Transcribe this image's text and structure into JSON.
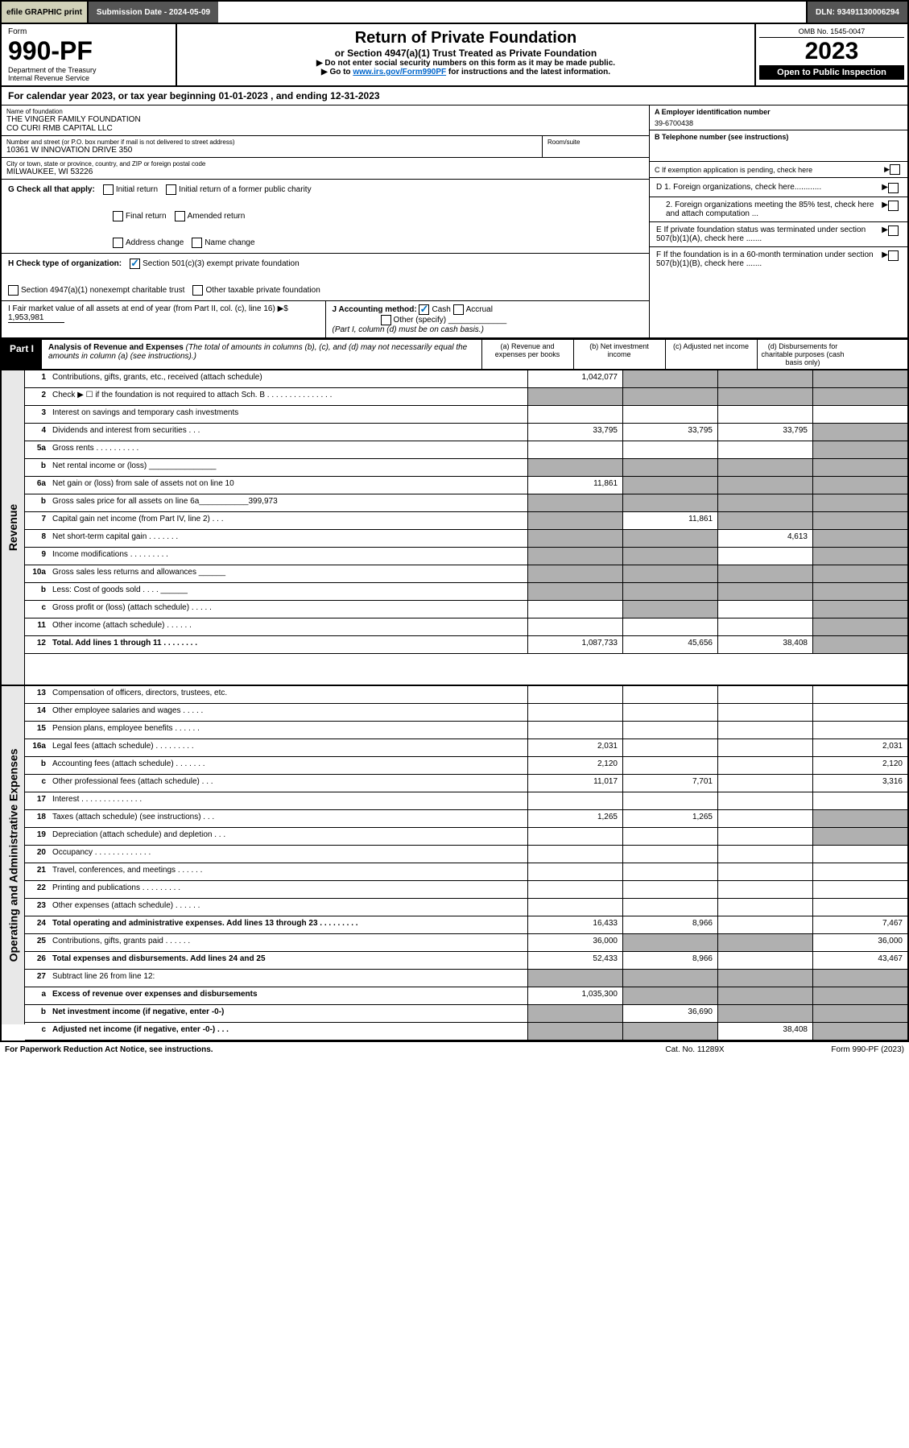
{
  "top": {
    "efile": "efile GRAPHIC print",
    "submission": "Submission Date - 2024-05-09",
    "dln": "DLN: 93491130006294"
  },
  "header": {
    "form_word": "Form",
    "form_no": "990-PF",
    "dept": "Department of the Treasury",
    "irs": "Internal Revenue Service",
    "title": "Return of Private Foundation",
    "sub1": "or Section 4947(a)(1) Trust Treated as Private Foundation",
    "sub2a": "▶ Do not enter social security numbers on this form as it may be made public.",
    "sub2b": "▶ Go to ",
    "sub2link": "www.irs.gov/Form990PF",
    "sub2c": " for instructions and the latest information.",
    "omb": "OMB No. 1545-0047",
    "year": "2023",
    "open": "Open to Public Inspection"
  },
  "calendar": "For calendar year 2023, or tax year beginning 01-01-2023                            , and ending 12-31-2023",
  "entity": {
    "name_label": "Name of foundation",
    "name1": "THE VINGER FAMILY FOUNDATION",
    "name2": "CO CURI RMB CAPITAL LLC",
    "addr_label": "Number and street (or P.O. box number if mail is not delivered to street address)",
    "addr": "10361 W INNOVATION DRIVE 350",
    "room_label": "Room/suite",
    "city_label": "City or town, state or province, country, and ZIP or foreign postal code",
    "city": "MILWAUKEE, WI  53226",
    "ein_label": "A Employer identification number",
    "ein": "39-6700438",
    "phone_label": "B Telephone number (see instructions)",
    "c_label": "C If exemption application is pending, check here",
    "d1": "D 1. Foreign organizations, check here............",
    "d2": "2. Foreign organizations meeting the 85% test, check here and attach computation ...",
    "e": "E  If private foundation status was terminated under section 507(b)(1)(A), check here .......",
    "f": "F  If the foundation is in a 60-month termination under section 507(b)(1)(B), check here .......",
    "g_label": "G Check all that apply:",
    "g_opts": [
      "Initial return",
      "Initial return of a former public charity",
      "Final return",
      "Amended return",
      "Address change",
      "Name change"
    ],
    "h_label": "H Check type of organization:",
    "h_opts": [
      "Section 501(c)(3) exempt private foundation",
      "Section 4947(a)(1) nonexempt charitable trust",
      "Other taxable private foundation"
    ],
    "i_label": "I Fair market value of all assets at end of year (from Part II, col. (c), line 16)  ▶$ ",
    "i_val": "1,953,981",
    "j_label": "J Accounting method:",
    "j_opts": [
      "Cash",
      "Accrual",
      "Other (specify)"
    ],
    "j_note": "(Part I, column (d) must be on cash basis.)"
  },
  "part1": {
    "label": "Part I",
    "title": "Analysis of Revenue and Expenses",
    "title_note": " (The total of amounts in columns (b), (c), and (d) may not necessarily equal the amounts in column (a) (see instructions).)",
    "cols": [
      "(a)   Revenue and expenses per books",
      "(b)   Net investment income",
      "(c)   Adjusted net income",
      "(d)   Disbursements for charitable purposes (cash basis only)"
    ]
  },
  "side_labels": {
    "revenue": "Revenue",
    "expenses": "Operating and Administrative Expenses"
  },
  "rows": [
    {
      "n": "1",
      "d": "Contributions, gifts, grants, etc., received (attach schedule)",
      "a": "1,042,077",
      "bgrey": true,
      "cgrey": true,
      "dgrey": true
    },
    {
      "n": "2",
      "d": "Check ▶ ☐ if the foundation is not required to attach Sch. B       .   .   .   .   .   .   .   .   .   .   .   .   .   .   .",
      "allgrey": true
    },
    {
      "n": "3",
      "d": "Interest on savings and temporary cash investments"
    },
    {
      "n": "4",
      "d": "Dividends and interest from securities     .    .    .",
      "a": "33,795",
      "b": "33,795",
      "c": "33,795",
      "dgrey": true
    },
    {
      "n": "5a",
      "d": "Gross rents       .    .    .    .    .    .    .    .    .    .",
      "dgrey": true
    },
    {
      "n": "b",
      "d": "Net rental income or (loss) _______________",
      "allgrey": true
    },
    {
      "n": "6a",
      "d": "Net gain or (loss) from sale of assets not on line 10",
      "a": "11,861",
      "bgrey": true,
      "cgrey": true,
      "dgrey": true
    },
    {
      "n": "b",
      "d": "Gross sales price for all assets on line 6a___________399,973",
      "allgrey": true
    },
    {
      "n": "7",
      "d": "Capital gain net income (from Part IV, line 2)    .   .   .",
      "agrey": true,
      "b": "11,861",
      "cgrey": true,
      "dgrey": true
    },
    {
      "n": "8",
      "d": "Net short-term capital gain   .   .   .   .   .   .   .",
      "agrey": true,
      "bgrey": true,
      "c": "4,613",
      "dgrey": true
    },
    {
      "n": "9",
      "d": "Income modifications  .   .   .   .   .   .   .   .   .",
      "agrey": true,
      "bgrey": true,
      "dgrey": true
    },
    {
      "n": "10a",
      "d": "Gross sales less returns and allowances   ______",
      "allgrey": true
    },
    {
      "n": "b",
      "d": "Less: Cost of goods sold     .    .    .    .   ______",
      "allgrey": true
    },
    {
      "n": "c",
      "d": "Gross profit or (loss) (attach schedule)      .   .   .   .   .",
      "bgrey": true,
      "dgrey": true
    },
    {
      "n": "11",
      "d": "Other income (attach schedule)    .   .   .   .   .   .",
      "dgrey": true
    },
    {
      "n": "12",
      "d": "Total. Add lines 1 through 11   .   .   .   .   .   .   .   .",
      "bold": true,
      "a": "1,087,733",
      "b": "45,656",
      "c": "38,408",
      "dgrey": true
    },
    {
      "n": "13",
      "d": "Compensation of officers, directors, trustees, etc."
    },
    {
      "n": "14",
      "d": "Other employee salaries and wages   .   .   .   .   ."
    },
    {
      "n": "15",
      "d": "Pension plans, employee benefits  .   .   .   .   .   ."
    },
    {
      "n": "16a",
      "d": "Legal fees (attach schedule) .   .   .   .   .   .   .   .   .",
      "a": "2,031",
      "d_": "2,031"
    },
    {
      "n": "b",
      "d": "Accounting fees (attach schedule) .   .   .   .   .   .   .",
      "a": "2,120",
      "d_": "2,120"
    },
    {
      "n": "c",
      "d": "Other professional fees (attach schedule)    .   .   .",
      "a": "11,017",
      "b": "7,701",
      "d_": "3,316"
    },
    {
      "n": "17",
      "d": "Interest .   .   .   .   .   .   .   .   .   .   .   .   .   ."
    },
    {
      "n": "18",
      "d": "Taxes (attach schedule) (see instructions)      .   .   .",
      "a": "1,265",
      "b": "1,265",
      "dgrey": true
    },
    {
      "n": "19",
      "d": "Depreciation (attach schedule) and depletion    .   .   .",
      "dgrey": true
    },
    {
      "n": "20",
      "d": "Occupancy .   .   .   .   .   .   .   .   .   .   .   .   ."
    },
    {
      "n": "21",
      "d": "Travel, conferences, and meetings .   .   .   .   .   ."
    },
    {
      "n": "22",
      "d": "Printing and publications .   .   .   .   .   .   .   .   ."
    },
    {
      "n": "23",
      "d": "Other expenses (attach schedule)  .   .   .   .   .   ."
    },
    {
      "n": "24",
      "d": "Total operating and administrative expenses. Add lines 13 through 23   .   .   .   .   .   .   .   .   .",
      "bold": true,
      "a": "16,433",
      "b": "8,966",
      "d_": "7,467"
    },
    {
      "n": "25",
      "d": "Contributions, gifts, grants paid     .   .   .   .   .   .",
      "a": "36,000",
      "bgrey": true,
      "cgrey": true,
      "d_": "36,000"
    },
    {
      "n": "26",
      "d": "Total expenses and disbursements. Add lines 24 and 25",
      "bold": true,
      "a": "52,433",
      "b": "8,966",
      "d_": "43,467"
    },
    {
      "n": "27",
      "d": "Subtract line 26 from line 12:",
      "allgrey": true
    },
    {
      "n": "a",
      "d": "Excess of revenue over expenses and disbursements",
      "bold": true,
      "a": "1,035,300",
      "bgrey": true,
      "cgrey": true,
      "dgrey": true
    },
    {
      "n": "b",
      "d": "Net investment income (if negative, enter -0-)",
      "bold": true,
      "agrey": true,
      "b": "36,690",
      "cgrey": true,
      "dgrey": true
    },
    {
      "n": "c",
      "d": "Adjusted net income (if negative, enter -0-)    .   .   .",
      "bold": true,
      "agrey": true,
      "bgrey": true,
      "c": "38,408",
      "dgrey": true
    }
  ],
  "footer": {
    "left": "For Paperwork Reduction Act Notice, see instructions.",
    "mid": "Cat. No. 11289X",
    "right": "Form 990-PF (2023)"
  }
}
